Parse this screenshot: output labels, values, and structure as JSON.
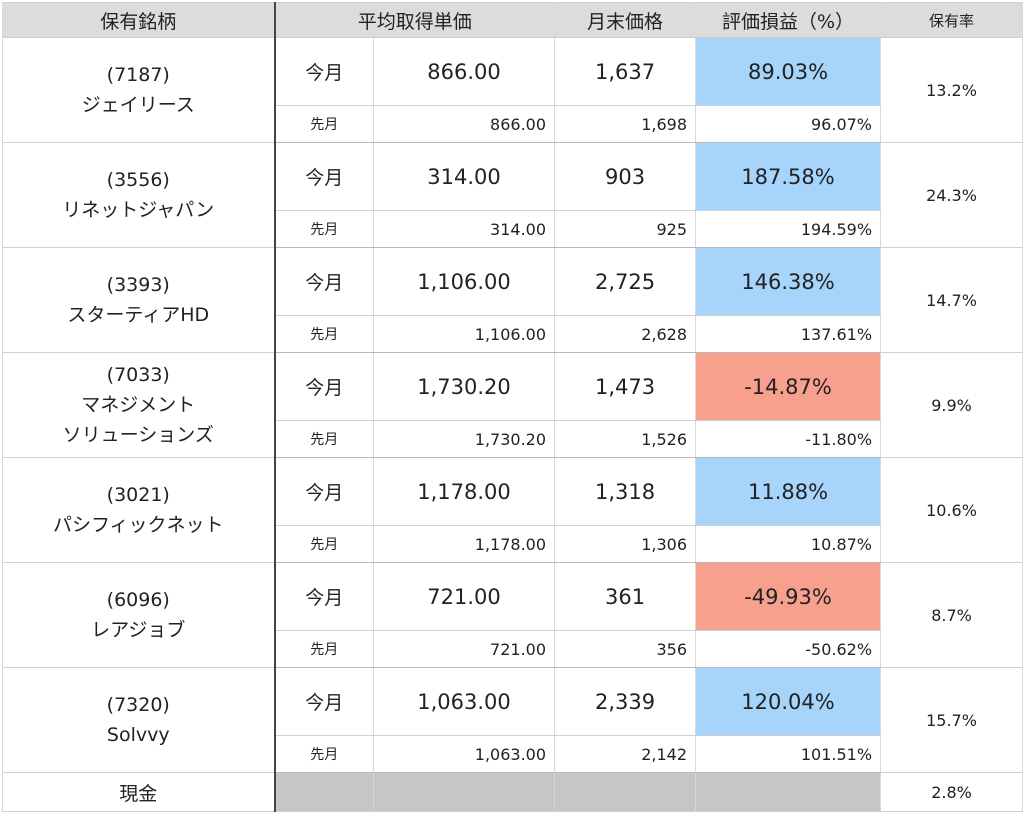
{
  "headers": {
    "holding": "保有銘柄",
    "avg_cost": "平均取得単価",
    "month_end_price": "月末価格",
    "gain_loss": "評価損益（%）",
    "ratio": "保有率"
  },
  "labels": {
    "current": "今月",
    "previous": "先月"
  },
  "colors": {
    "positive": "#a6d4fb",
    "negative": "#f7a08e",
    "header_bg": "#dcdcdc",
    "cash_bg": "#c6c6c6"
  },
  "holdings": [
    {
      "code": "(7187)",
      "name": "ジェイリース",
      "name2": "",
      "ratio": "13.2%",
      "current": {
        "avg": "866.00",
        "price": "1,637",
        "pl": "89.03%"
      },
      "previous": {
        "avg": "866.00",
        "price": "1,698",
        "pl": "96.07%"
      }
    },
    {
      "code": "(3556)",
      "name": "リネットジャパン",
      "name2": "",
      "ratio": "24.3%",
      "current": {
        "avg": "314.00",
        "price": "903",
        "pl": "187.58%"
      },
      "previous": {
        "avg": "314.00",
        "price": "925",
        "pl": "194.59%"
      }
    },
    {
      "code": "(3393)",
      "name": "スターティアHD",
      "name2": "",
      "ratio": "14.7%",
      "current": {
        "avg": "1,106.00",
        "price": "2,725",
        "pl": "146.38%"
      },
      "previous": {
        "avg": "1,106.00",
        "price": "2,628",
        "pl": "137.61%"
      }
    },
    {
      "code": "(7033)",
      "name": "マネジメント",
      "name2": "ソリューションズ",
      "ratio": "9.9%",
      "current": {
        "avg": "1,730.20",
        "price": "1,473",
        "pl": "-14.87%"
      },
      "previous": {
        "avg": "1,730.20",
        "price": "1,526",
        "pl": "-11.80%"
      }
    },
    {
      "code": "(3021)",
      "name": "パシフィックネット",
      "name2": "",
      "ratio": "10.6%",
      "current": {
        "avg": "1,178.00",
        "price": "1,318",
        "pl": "11.88%"
      },
      "previous": {
        "avg": "1,178.00",
        "price": "1,306",
        "pl": "10.87%"
      }
    },
    {
      "code": "(6096)",
      "name": "レアジョブ",
      "name2": "",
      "ratio": "8.7%",
      "current": {
        "avg": "721.00",
        "price": "361",
        "pl": "-49.93%"
      },
      "previous": {
        "avg": "721.00",
        "price": "356",
        "pl": "-50.62%"
      }
    },
    {
      "code": "(7320)",
      "name": "Solvvy",
      "name2": "",
      "ratio": "15.7%",
      "current": {
        "avg": "1,063.00",
        "price": "2,339",
        "pl": "120.04%"
      },
      "previous": {
        "avg": "1,063.00",
        "price": "2,142",
        "pl": "101.51%"
      }
    }
  ],
  "cash": {
    "label": "現金",
    "ratio": "2.8%"
  }
}
